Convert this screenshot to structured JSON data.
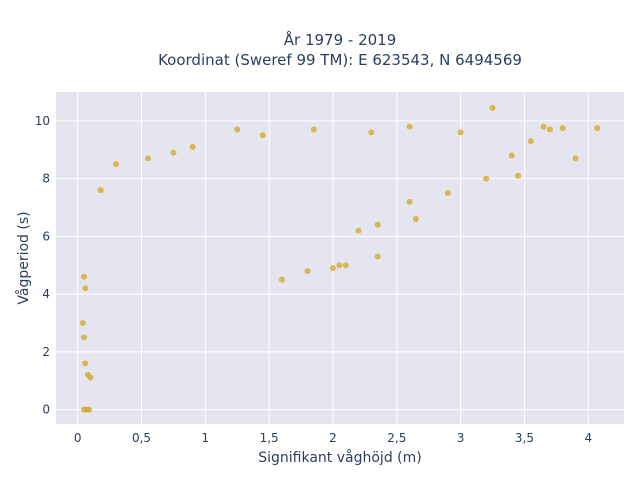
{
  "chart_data": {
    "type": "scatter",
    "title": "År 1979 - 2019",
    "subtitle": "Koordinat (Sweref 99 TM): E 623543, N 6494569",
    "xlabel": "Signifikant våghöjd (m)",
    "ylabel": "Vågperiod (s)",
    "xlim": [
      -0.17,
      4.28
    ],
    "ylim": [
      -0.5,
      11.0
    ],
    "x_ticks": [
      0,
      0.5,
      1,
      1.5,
      2,
      2.5,
      3,
      3.5,
      4
    ],
    "x_tick_labels": [
      "0",
      "0,5",
      "1",
      "1,5",
      "2",
      "2,5",
      "3",
      "3,5",
      "4"
    ],
    "y_ticks": [
      0,
      2,
      4,
      6,
      8,
      10
    ],
    "y_tick_labels": [
      "0",
      "2",
      "4",
      "6",
      "8",
      "10"
    ],
    "grid": true,
    "marker_color": "#D4A520",
    "plot_bgcolor": "#E5E5F0",
    "series": [
      {
        "points": [
          [
            0.05,
            0.0
          ],
          [
            0.07,
            0.0
          ],
          [
            0.09,
            0.0
          ],
          [
            3.25,
            10.45
          ],
          [
            4.07,
            9.75
          ],
          [
            3.9,
            8.7
          ],
          [
            3.7,
            9.7
          ],
          [
            3.55,
            9.3
          ],
          [
            3.4,
            8.8
          ],
          [
            3.45,
            8.1
          ],
          [
            3.2,
            8.0
          ],
          [
            2.9,
            7.5
          ],
          [
            2.6,
            7.2
          ],
          [
            2.35,
            6.4
          ],
          [
            2.2,
            6.2
          ],
          [
            2.05,
            5.0
          ],
          [
            2.1,
            5.0
          ],
          [
            2.0,
            4.9
          ],
          [
            1.8,
            4.8
          ],
          [
            1.6,
            4.5
          ],
          [
            2.35,
            5.3
          ],
          [
            2.65,
            6.6
          ],
          [
            0.9,
            9.1
          ],
          [
            1.25,
            9.7
          ],
          [
            1.45,
            9.5
          ],
          [
            1.85,
            9.7
          ],
          [
            2.3,
            9.6
          ],
          [
            2.6,
            9.8
          ],
          [
            3.0,
            9.6
          ],
          [
            3.65,
            9.8
          ],
          [
            3.8,
            9.75
          ],
          [
            0.18,
            7.6
          ],
          [
            0.3,
            8.5
          ],
          [
            0.55,
            8.7
          ],
          [
            0.75,
            8.9
          ],
          [
            0.08,
            1.2
          ],
          [
            0.1,
            1.1
          ],
          [
            0.06,
            1.6
          ],
          [
            0.05,
            2.5
          ],
          [
            0.04,
            3.0
          ],
          [
            0.05,
            4.6
          ],
          [
            0.06,
            4.2
          ]
        ]
      }
    ]
  }
}
